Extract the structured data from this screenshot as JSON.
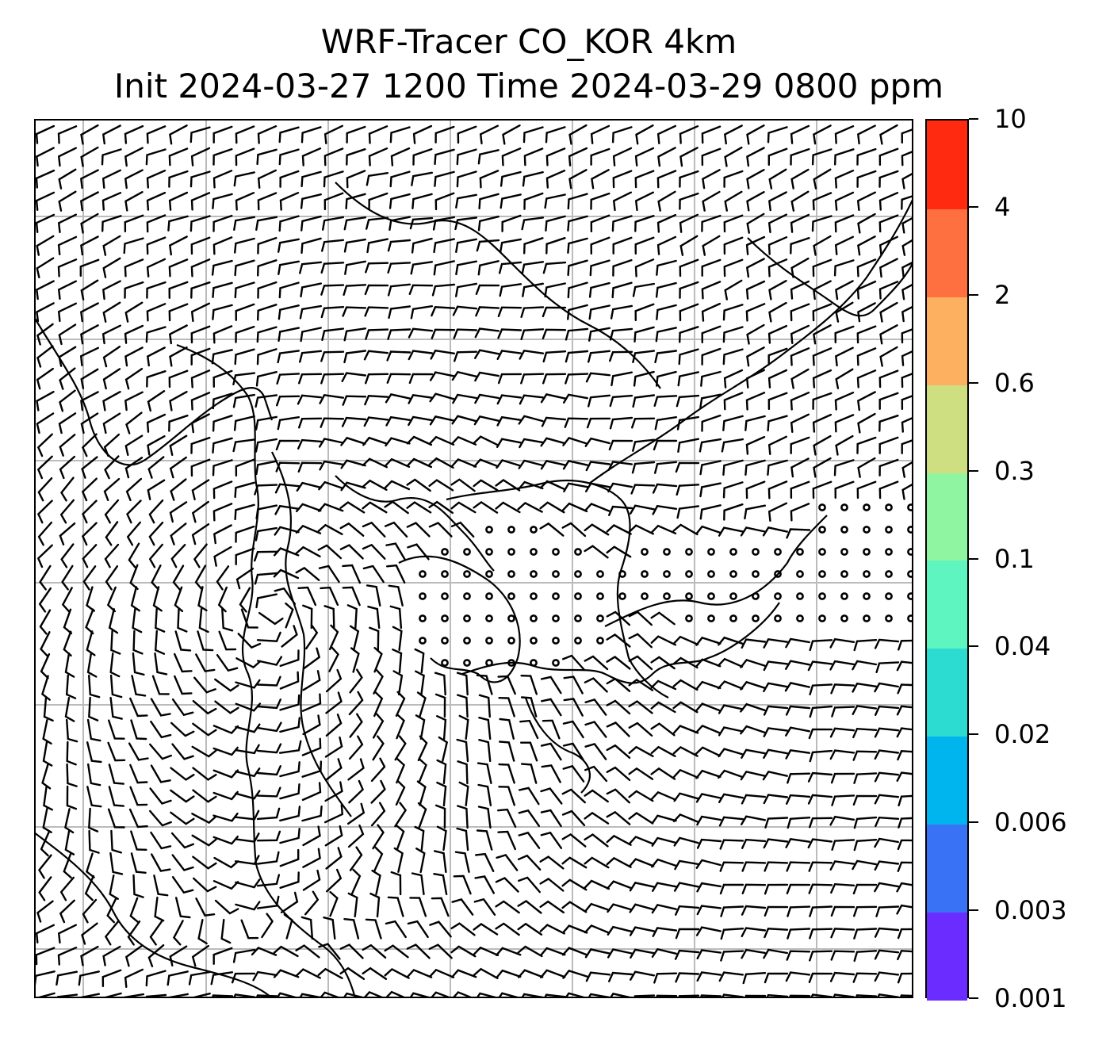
{
  "title": {
    "line1": "WRF-Tracer CO_KOR 4km",
    "line2": "Init 2024-03-27 1200 Time 2024-03-29 0800 ppm"
  },
  "colorbar": {
    "levels": [
      "0.001",
      "0.003",
      "0.006",
      "0.02",
      "0.04",
      "0.1",
      "0.3",
      "0.6",
      "2",
      "4",
      "10"
    ],
    "colors": [
      "#6a2cff",
      "#3a72f5",
      "#00b4ee",
      "#2cdcd0",
      "#5ff5c0",
      "#90f5a0",
      "#cddf80",
      "#fdb060",
      "#ff7040",
      "#ff2a10"
    ]
  },
  "map": {
    "gridline_color": "#bbbbbb",
    "coastline_color": "#000000"
  }
}
